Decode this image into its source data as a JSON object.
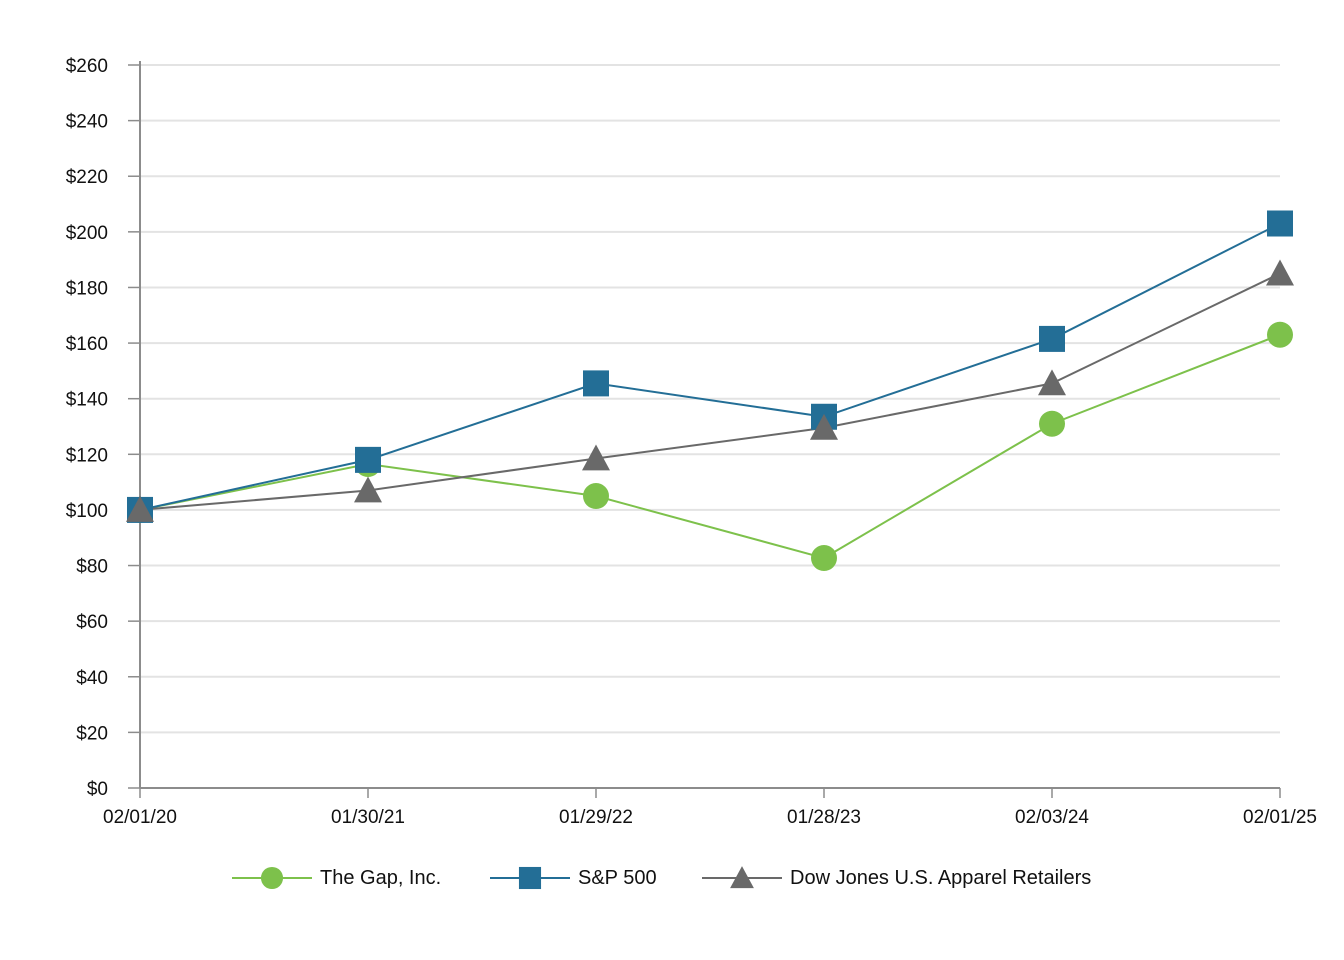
{
  "chart_data": {
    "type": "line",
    "title": "",
    "xlabel": "",
    "ylabel": "",
    "categories": [
      "02/01/20",
      "01/30/21",
      "01/29/22",
      "01/28/23",
      "02/03/24",
      "02/01/25"
    ],
    "ylim": [
      0,
      260
    ],
    "yticks": [
      0,
      20,
      40,
      60,
      80,
      100,
      120,
      140,
      160,
      180,
      200,
      220,
      240,
      260
    ],
    "ytick_labels": [
      "$0",
      "$20",
      "$40",
      "$60",
      "$80",
      "$100",
      "$120",
      "$140",
      "$160",
      "$180",
      "$200",
      "$220",
      "$240",
      "$260"
    ],
    "grid": "horizontal",
    "legend_position": "bottom",
    "series": [
      {
        "name": "The Gap, Inc.",
        "marker": "circle",
        "color": "#7dc14b",
        "values": [
          100,
          116.5,
          105,
          82.7,
          131,
          163
        ]
      },
      {
        "name": "S&P 500",
        "marker": "square",
        "color": "#236e96",
        "values": [
          100,
          118,
          145.5,
          133.5,
          161.5,
          203
        ]
      },
      {
        "name": "Dow Jones U.S. Apparel Retailers",
        "marker": "triangle",
        "color": "#696969",
        "values": [
          100,
          107,
          118.5,
          129.5,
          145.5,
          185
        ]
      }
    ]
  }
}
